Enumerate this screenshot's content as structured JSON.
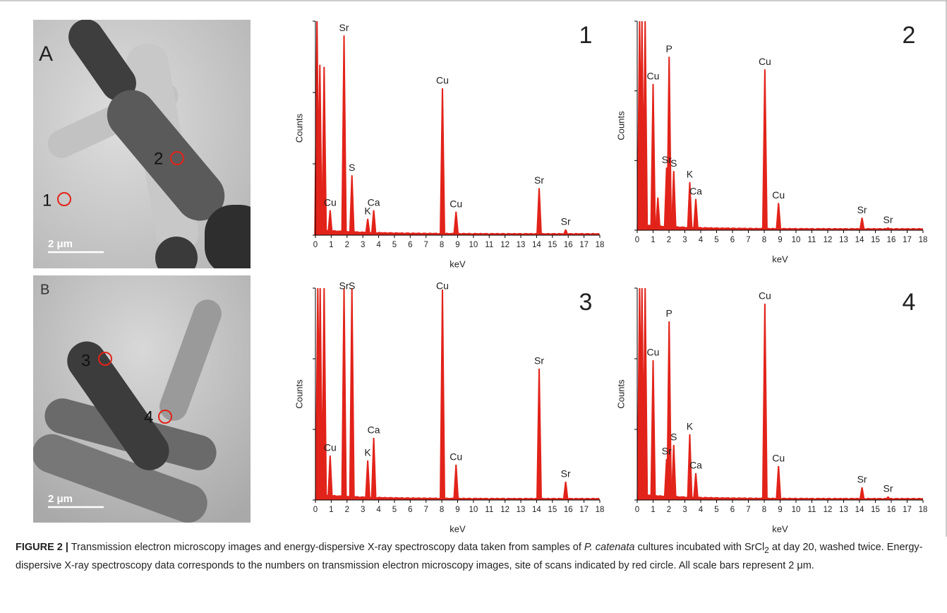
{
  "panels": [
    {
      "letter": "A",
      "sites": [
        "1",
        "2"
      ],
      "scale_bar": "2 μm"
    },
    {
      "letter": "B",
      "sites": [
        "3",
        "4"
      ],
      "scale_bar": "2 μm"
    }
  ],
  "chart_data": [
    {
      "type": "area",
      "panel_label": "1",
      "x_label": "keV",
      "y_label": "Counts",
      "color": "#e2231a",
      "xlim": [
        0,
        18
      ],
      "xticks": [
        0,
        1,
        2,
        3,
        4,
        5,
        6,
        7,
        8,
        9,
        10,
        11,
        12,
        13,
        14,
        15,
        16,
        17,
        18
      ],
      "ylim": [
        0,
        300
      ],
      "yticks": [
        0,
        100,
        200,
        300
      ],
      "x": [
        0.1,
        0.28,
        0.55,
        0.93,
        1.81,
        2.31,
        3.31,
        3.69,
        8.04,
        8.9,
        14.16,
        15.84
      ],
      "values": [
        300,
        239,
        236,
        35,
        280,
        84,
        23,
        35,
        206,
        33,
        66,
        8
      ],
      "peak_labels": [
        null,
        null,
        null,
        "Cu",
        "Sr",
        "S",
        "K",
        "Ca",
        "Cu",
        "Cu",
        "Sr",
        "Sr"
      ]
    },
    {
      "type": "area",
      "panel_label": "2",
      "x_label": "keV",
      "y_label": "Counts",
      "color": "#e2231a",
      "xlim": [
        0,
        18
      ],
      "xticks": [
        0,
        1,
        2,
        3,
        4,
        5,
        6,
        7,
        8,
        9,
        10,
        11,
        12,
        13,
        14,
        15,
        16,
        17,
        18
      ],
      "ylim": [
        0,
        300
      ],
      "yticks": [
        0,
        100,
        200,
        300
      ],
      "x": [
        0.15,
        0.3,
        0.5,
        1.0,
        1.3,
        1.85,
        2.01,
        2.3,
        3.31,
        3.69,
        8.04,
        8.9,
        14.16,
        15.8
      ],
      "values": [
        300,
        300,
        300,
        210,
        47,
        90,
        249,
        85,
        69,
        45,
        231,
        39,
        18,
        4
      ],
      "peak_labels": [
        null,
        null,
        null,
        "Cu",
        null,
        "Sr",
        "P",
        "S",
        "K",
        "Ca",
        "Cu",
        "Cu",
        "Sr",
        "Sr"
      ]
    },
    {
      "type": "area",
      "panel_label": "3",
      "x_label": "keV",
      "y_label": "Counts",
      "color": "#e2231a",
      "xlim": [
        0,
        18
      ],
      "xticks": [
        0,
        1,
        2,
        3,
        4,
        5,
        6,
        7,
        8,
        9,
        10,
        11,
        12,
        13,
        14,
        15,
        16,
        17,
        18
      ],
      "ylim": [
        0,
        300
      ],
      "yticks": [
        0,
        100,
        200,
        300
      ],
      "x": [
        0.15,
        0.3,
        0.55,
        0.93,
        1.81,
        2.31,
        3.31,
        3.69,
        8.04,
        8.9,
        14.16,
        15.84
      ],
      "values": [
        300,
        300,
        300,
        63,
        300,
        300,
        56,
        88,
        298,
        50,
        186,
        26
      ],
      "peak_labels": [
        null,
        null,
        null,
        "Cu",
        "Sr",
        "S",
        "K",
        "Ca",
        "Cu",
        "Cu",
        "Sr",
        "Sr"
      ]
    },
    {
      "type": "area",
      "panel_label": "4",
      "x_label": "keV",
      "y_label": "Counts",
      "color": "#e2231a",
      "xlim": [
        0,
        18
      ],
      "xticks": [
        0,
        1,
        2,
        3,
        4,
        5,
        6,
        7,
        8,
        9,
        10,
        11,
        12,
        13,
        14,
        15,
        16,
        17,
        18
      ],
      "ylim": [
        0,
        300
      ],
      "yticks": [
        0,
        100,
        200,
        300
      ],
      "x": [
        0.15,
        0.3,
        0.5,
        1.0,
        1.85,
        2.01,
        2.3,
        3.31,
        3.69,
        8.04,
        8.9,
        14.16,
        15.8
      ],
      "values": [
        300,
        300,
        300,
        198,
        58,
        253,
        78,
        93,
        38,
        278,
        48,
        18,
        5
      ],
      "peak_labels": [
        null,
        null,
        null,
        "Cu",
        "Sr",
        "P",
        "S",
        "K",
        "Ca",
        "Cu",
        "Cu",
        "Sr",
        "Sr"
      ]
    }
  ],
  "caption": {
    "label": "FIGURE 2 |",
    "text_1": " Transmission electron microscopy images and energy-dispersive X-ray spectroscopy data taken from samples of ",
    "species": "P. catenata",
    "text_2": " cultures incubated with SrCl",
    "subscript": "2",
    "text_3": " at day 20, washed twice. Energy-dispersive X-ray spectroscopy data corresponds to the numbers on transmission electron microscopy images, site of scans indicated by red circle. All scale bars represent 2 μm."
  }
}
